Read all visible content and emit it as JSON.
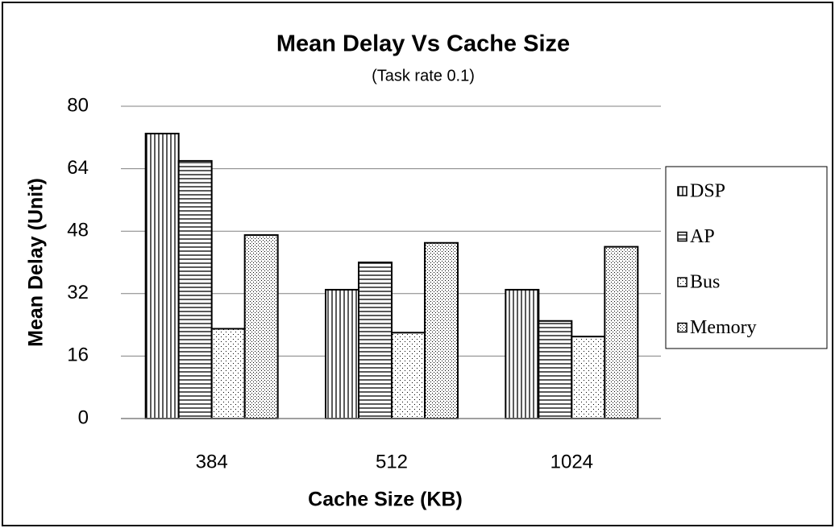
{
  "chart_data": {
    "type": "bar",
    "title": "Mean Delay Vs Cache Size",
    "subtitle": "(Task rate 0.1)",
    "x_label": "Cache Size (KB)",
    "y_label": "Mean Delay (Unit)",
    "categories": [
      "384",
      "512",
      "1024"
    ],
    "series": [
      {
        "name": "DSP",
        "color": "#000000",
        "pattern": "vertical",
        "values": [
          73,
          33,
          33
        ]
      },
      {
        "name": "AP",
        "color": "#000000",
        "pattern": "horizontal",
        "values": [
          66,
          40,
          25
        ]
      },
      {
        "name": "Bus",
        "color": "#000000",
        "pattern": "sparse-dots",
        "values": [
          23,
          22,
          21
        ]
      },
      {
        "name": "Memory",
        "color": "#000000",
        "pattern": "dense-dots",
        "values": [
          47,
          45,
          44
        ]
      }
    ],
    "ylim": [
      0,
      80
    ],
    "yticks": [
      0,
      16,
      32,
      48,
      64,
      80
    ],
    "grid": true,
    "legend": "right"
  }
}
